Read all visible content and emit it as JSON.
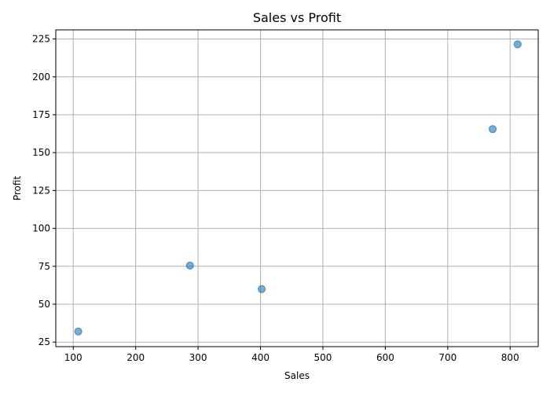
{
  "chart_data": {
    "type": "scatter",
    "title": "Sales vs Profit",
    "xlabel": "Sales",
    "ylabel": "Profit",
    "xlim": [
      72,
      845
    ],
    "ylim": [
      22,
      231
    ],
    "xticks": [
      100,
      200,
      300,
      400,
      500,
      600,
      700,
      800
    ],
    "yticks": [
      25,
      50,
      75,
      100,
      125,
      150,
      175,
      200,
      225
    ],
    "grid": true,
    "marker_color": "#1f77b4",
    "marker_opacity": 0.6,
    "points": [
      {
        "x": 108,
        "y": 32
      },
      {
        "x": 287,
        "y": 75.5
      },
      {
        "x": 402,
        "y": 60
      },
      {
        "x": 772,
        "y": 165.5
      },
      {
        "x": 812,
        "y": 221.5
      }
    ]
  }
}
